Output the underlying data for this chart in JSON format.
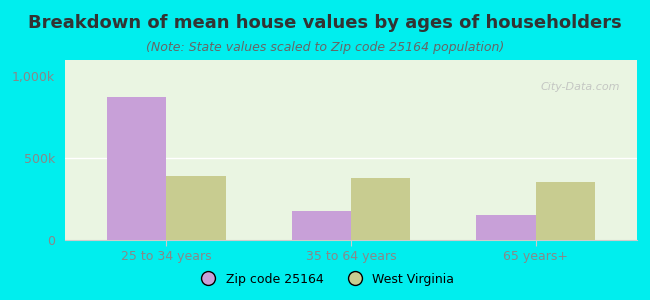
{
  "title": "Breakdown of mean house values by ages of householders",
  "subtitle": "(Note: State values scaled to Zip code 25164 population)",
  "categories": [
    "25 to 34 years",
    "35 to 64 years",
    "65 years+"
  ],
  "zip_values": [
    875000,
    175000,
    150000
  ],
  "state_values": [
    390000,
    380000,
    355000
  ],
  "ylim": [
    0,
    1100000
  ],
  "yticks": [
    0,
    500000,
    1000000
  ],
  "ytick_labels": [
    "0",
    "500k",
    "1,000k"
  ],
  "zip_color": "#c8a0d8",
  "state_color": "#c8cc90",
  "background_color": "#00eeee",
  "plot_bg": "#eaf5e2",
  "legend_zip": "Zip code 25164",
  "legend_state": "West Virginia",
  "bar_width": 0.32,
  "title_fontsize": 13,
  "subtitle_fontsize": 9,
  "tick_label_color": "#888888",
  "title_color": "#333333",
  "subtitle_color": "#666666",
  "watermark": "City-Data.com",
  "grid_color": "#ffffff",
  "spine_color": "#cccccc"
}
